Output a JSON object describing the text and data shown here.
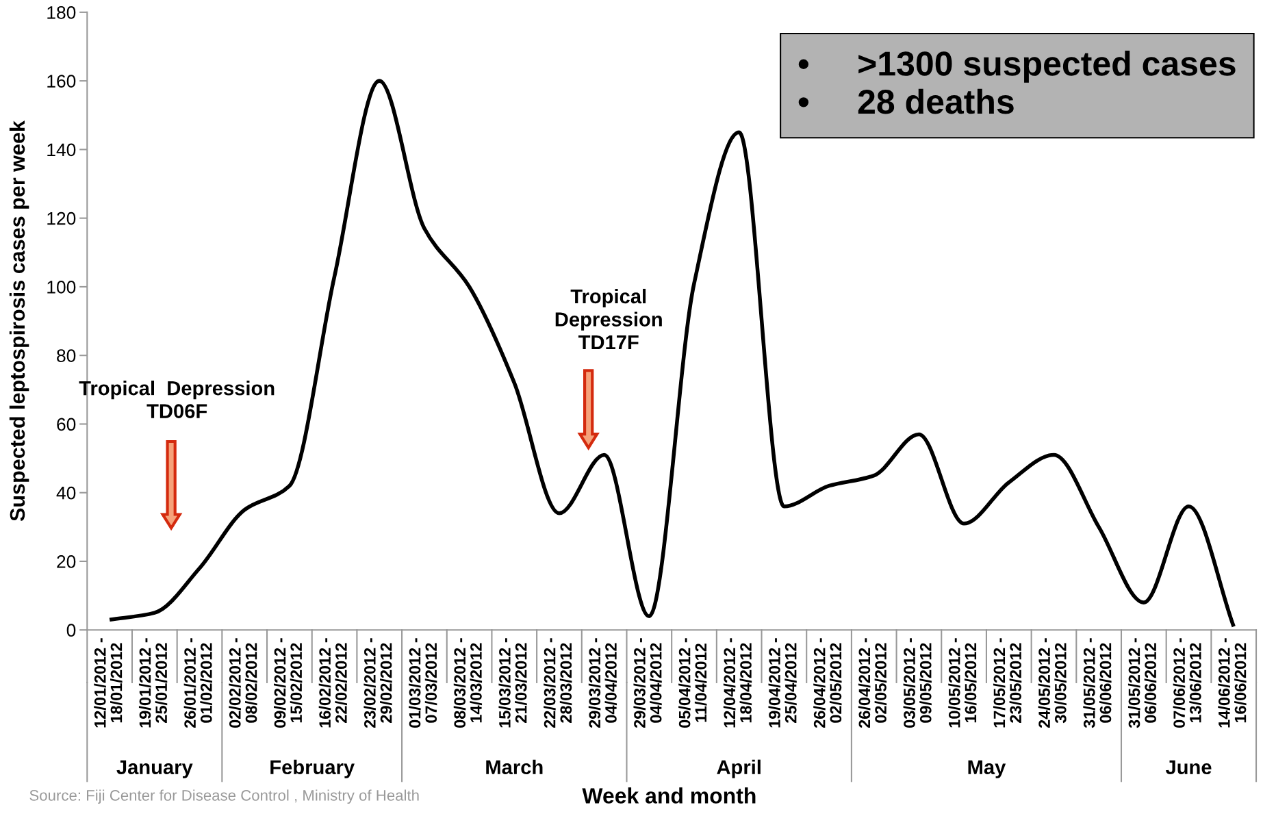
{
  "chart_data": {
    "type": "line",
    "xlabel": "Week and month",
    "ylabel": "Suspected leptospirosis cases per week",
    "categories": [
      "12/01/2012 - 18/01/2012",
      "19/01/2012 - 25/01/2012",
      "26/01/2012 - 01/02/2012",
      "02/02/2012 - 08/02/2012",
      "09/02/2012 - 15/02/2012",
      "16/02/2012 - 22/02/2012",
      "23/02/2012 - 29/02/2012",
      "01/03/2012 - 07/03/2012",
      "08/03/2012 - 14/03/2012",
      "15/03/2012 - 21/03/2012",
      "22/03/2012 - 28/03/2012",
      "29/03/2012 - 04/04/2012",
      "29/03/2012 - 04/04/2012",
      "05/04/2012 - 11/04/2012",
      "12/04/2012 - 18/04/2012",
      "19/04/2012 - 25/04/2012",
      "26/04/2012 - 02/05/2012",
      "26/04/2012 - 02/05/2012",
      "03/05/2012 - 09/05/2012",
      "10/05/2012 - 16/05/2012",
      "17/05/2012 - 23/05/2012",
      "24/05/2012 - 30/05/2012",
      "31/05/2012 - 06/06/2012",
      "31/05/2012 - 06/06/2012",
      "07/06/2012 - 13/06/2012",
      "14/06/2012 - 16/06/2012"
    ],
    "series": [
      {
        "color": "#000000",
        "values": [
          3,
          5,
          18,
          35,
          42,
          103,
          160,
          117,
          100,
          72,
          34,
          51,
          4,
          101,
          145,
          36,
          42,
          45,
          57,
          31,
          43,
          51,
          30,
          8,
          36,
          1
        ]
      }
    ],
    "ylim": [
      0,
      180
    ],
    "yticks": [
      0,
      20,
      40,
      60,
      80,
      100,
      120,
      140,
      160,
      180
    ],
    "grid": false,
    "legend": false,
    "marker": "none",
    "line_style": "solid",
    "annotations": [
      "January",
      "February",
      "March",
      "April",
      "May",
      "June",
      "Tropical  Depression\nTD06F",
      "Tropical\nDepression\nTD17F",
      "•     >1300 suspected cases\n•     28 deaths",
      "Source: Fiji Center for Disease Control , Ministry of Health"
    ]
  }
}
